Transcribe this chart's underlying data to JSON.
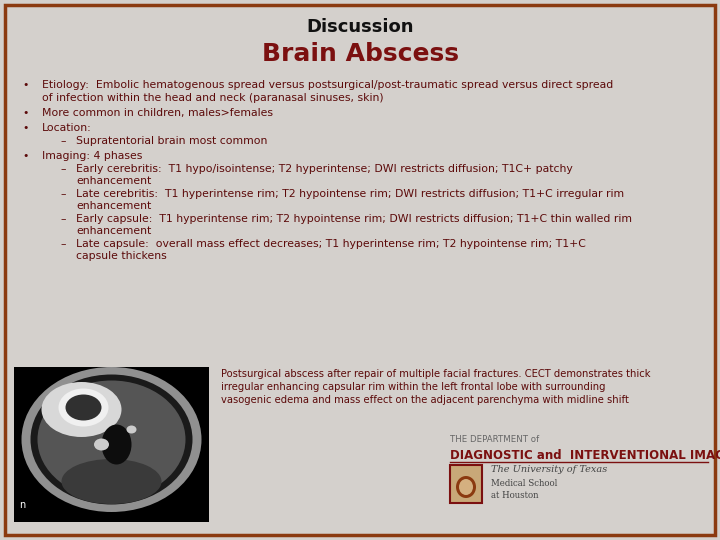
{
  "title": "Discussion",
  "subtitle": "Brain Abscess",
  "bg_color": "#d4d0cc",
  "border_color": "#8B3A10",
  "title_color": "#111111",
  "subtitle_color": "#7B1010",
  "text_color": "#5C0A0A",
  "caption": "Postsurgical abscess after repair of multiple facial fractures. CECT demonstrates thick\nirregular enhancing capsular rim within the left frontal lobe with surrounding\nvasogenic edema and mass effect on the adjacent parenchyma with midline shift",
  "dept_line1": "THE DEPARTMENT of",
  "dept_line2": "DIAGNOSTIC and  INTERVENTIONAL IMAGING",
  "univ_line1": "The University of Texas",
  "univ_line2": "Medical School",
  "univ_line3": "at Houston"
}
